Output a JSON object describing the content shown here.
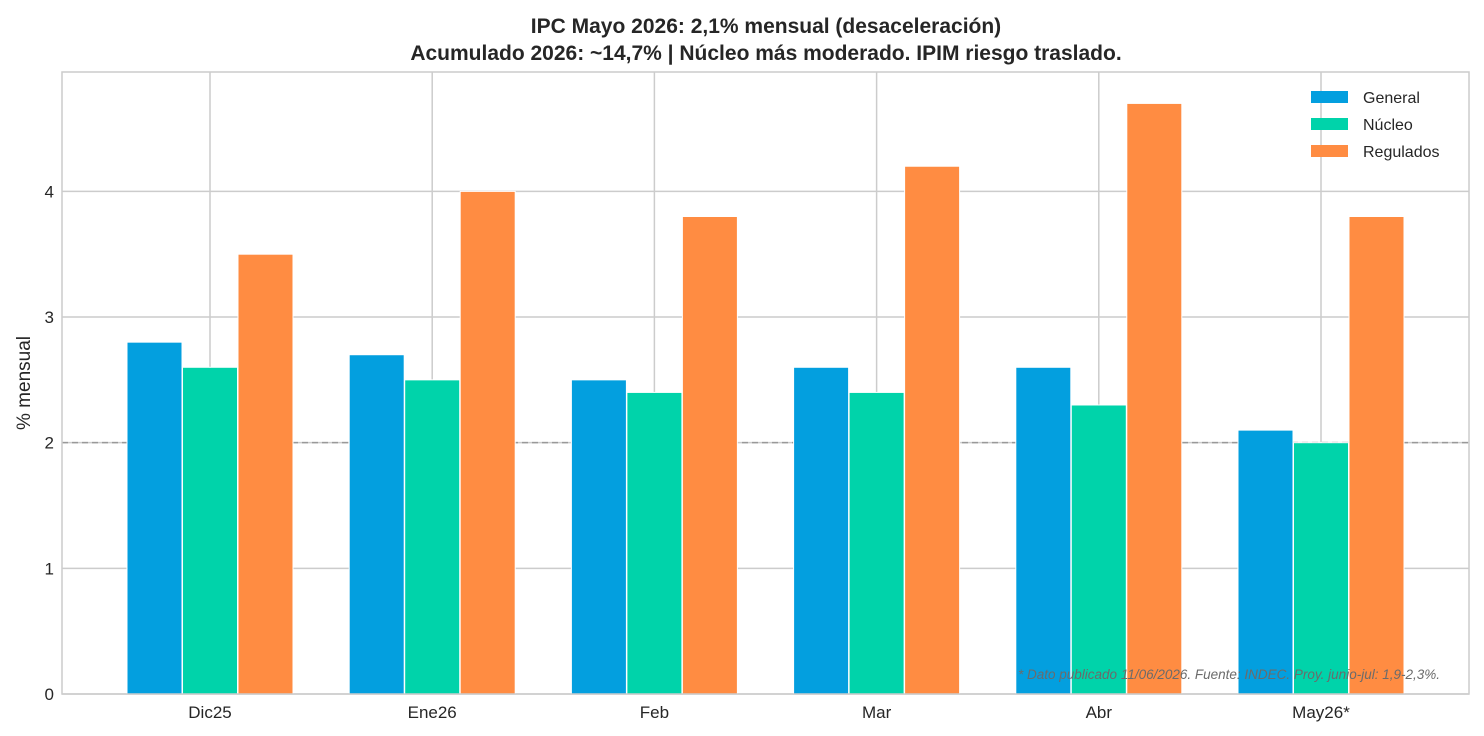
{
  "chart_data": {
    "type": "bar",
    "title": "IPC Mayo 2026: 2,1% mensual (desaceleración)",
    "subtitle": "Acumulado 2026: ~14,7% | Núcleo más moderado. IPIM riesgo traslado.",
    "xlabel": "",
    "ylabel": "% mensual",
    "ylim": [
      0,
      4.95
    ],
    "yticks": [
      0,
      1,
      2,
      3,
      4
    ],
    "grid": true,
    "legend_position": "top-right",
    "categories": [
      "Dic25",
      "Ene26",
      "Feb",
      "Mar",
      "Abr",
      "May26*"
    ],
    "series": [
      {
        "name": "General",
        "color": "#039fdf",
        "values": [
          2.8,
          2.7,
          2.5,
          2.6,
          2.6,
          2.1
        ]
      },
      {
        "name": "Núcleo",
        "color": "#00d3aa",
        "values": [
          2.6,
          2.5,
          2.4,
          2.4,
          2.3,
          2.0
        ]
      },
      {
        "name": "Regulados",
        "color": "#ff8c42",
        "values": [
          3.5,
          4.0,
          3.8,
          4.2,
          4.7,
          3.8
        ]
      }
    ],
    "reference_line": {
      "y": 2.0,
      "style": "dashed",
      "color": "#999999"
    },
    "annotation": "* Dato publicado 11/06/2026. Fuente: INDEC. Proy. junio-jul: 1,9-2,3%."
  }
}
